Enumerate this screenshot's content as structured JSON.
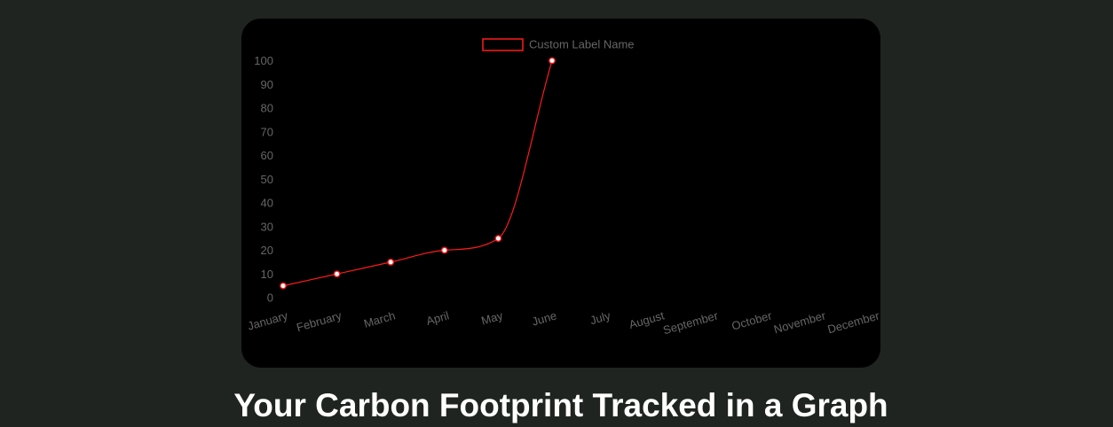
{
  "page": {
    "heading": "Your Carbon Footprint Tracked in a Graph"
  },
  "colors": {
    "page_background": "#1f2420",
    "chart_background": "#000000",
    "series_line": "#ff1a1a",
    "point_fill": "#ffffff",
    "tick_text": "#666666",
    "heading_text": "#ffffff"
  },
  "chart_data": {
    "type": "line",
    "categories": [
      "January",
      "February",
      "March",
      "April",
      "May",
      "June",
      "July",
      "August",
      "September",
      "October",
      "November",
      "December"
    ],
    "series": [
      {
        "name": "Custom Label Name",
        "values": [
          5,
          10,
          15,
          20,
          25,
          100,
          null,
          null,
          null,
          null,
          null,
          null
        ]
      }
    ],
    "ylim": [
      0,
      100
    ],
    "yticks": [
      0,
      10,
      20,
      30,
      40,
      50,
      60,
      70,
      80,
      90,
      100
    ],
    "grid": false,
    "legend": "top-center",
    "smooth": true
  }
}
